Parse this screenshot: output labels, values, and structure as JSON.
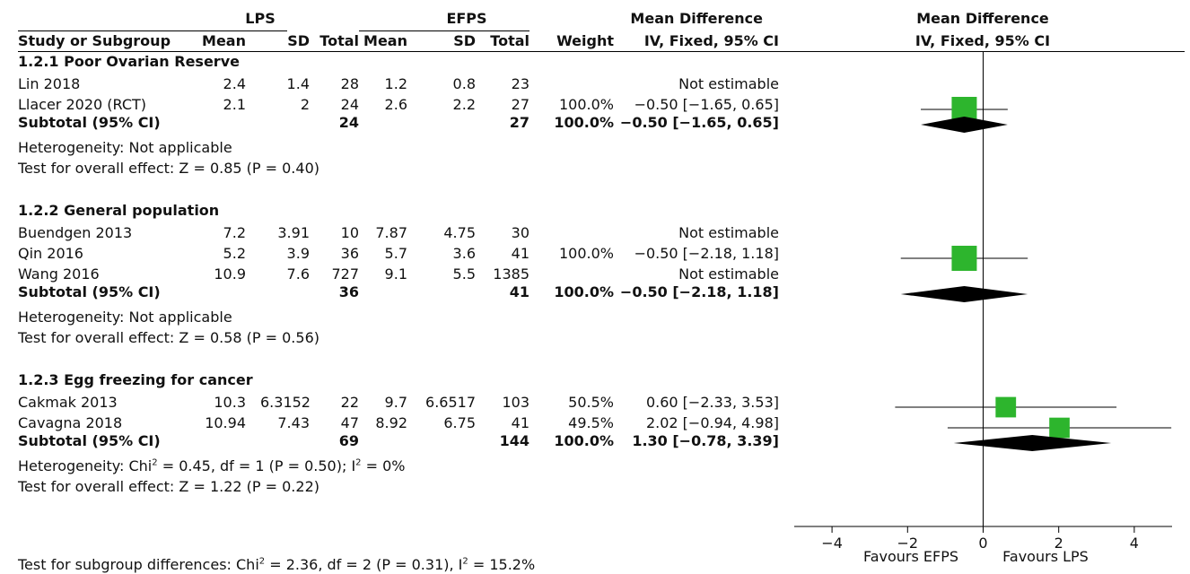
{
  "header": {
    "group1": "LPS",
    "group2": "EFPS",
    "md_title": "Mean Difference",
    "md_sub": "IV, Fixed, 95% CI",
    "plot_title": "Mean Difference",
    "plot_sub": "IV, Fixed, 95% CI",
    "cols": {
      "study": "Study or Subgroup",
      "mean1": "Mean",
      "sd1": "SD",
      "total1": "Total",
      "mean2": "Mean",
      "sd2": "SD",
      "total2": "Total",
      "weight": "Weight"
    }
  },
  "subgroups": [
    {
      "title": "1.2.1 Poor Ovarian Reserve",
      "studies": [
        {
          "name": "Lin 2018",
          "mean1": "2.4",
          "sd1": "1.4",
          "n1": "28",
          "mean2": "1.2",
          "sd2": "0.8",
          "n2": "23",
          "weight": "",
          "ci": "Not estimable"
        },
        {
          "name": "Llacer 2020 (RCT)",
          "mean1": "2.1",
          "sd1": "2",
          "n1": "24",
          "mean2": "2.6",
          "sd2": "2.2",
          "n2": "27",
          "weight": "100.0%",
          "ci": "−0.50 [−1.65, 0.65]"
        }
      ],
      "subtotal": {
        "label": "Subtotal (95% CI)",
        "n1": "24",
        "n2": "27",
        "weight": "100.0%",
        "ci": "−0.50 [−1.65, 0.65]"
      },
      "heterogeneity": "Heterogeneity: Not applicable",
      "overall": "Test for overall effect: Z = 0.85 (P = 0.40)"
    },
    {
      "title": "1.2.2 General population",
      "studies": [
        {
          "name": "Buendgen 2013",
          "mean1": "7.2",
          "sd1": "3.91",
          "n1": "10",
          "mean2": "7.87",
          "sd2": "4.75",
          "n2": "30",
          "weight": "",
          "ci": "Not estimable"
        },
        {
          "name": "Qin 2016",
          "mean1": "5.2",
          "sd1": "3.9",
          "n1": "36",
          "mean2": "5.7",
          "sd2": "3.6",
          "n2": "41",
          "weight": "100.0%",
          "ci": "−0.50 [−2.18, 1.18]"
        },
        {
          "name": "Wang 2016",
          "mean1": "10.9",
          "sd1": "7.6",
          "n1": "727",
          "mean2": "9.1",
          "sd2": "5.5",
          "n2": "1385",
          "weight": "",
          "ci": "Not estimable"
        }
      ],
      "subtotal": {
        "label": "Subtotal (95% CI)",
        "n1": "36",
        "n2": "41",
        "weight": "100.0%",
        "ci": "−0.50 [−2.18, 1.18]"
      },
      "heterogeneity": "Heterogeneity: Not applicable",
      "overall": "Test for overall effect: Z = 0.58 (P = 0.56)"
    },
    {
      "title": "1.2.3 Egg freezing for cancer",
      "studies": [
        {
          "name": "Cakmak 2013",
          "mean1": "10.3",
          "sd1": "6.3152",
          "n1": "22",
          "mean2": "9.7",
          "sd2": "6.6517",
          "n2": "103",
          "weight": "50.5%",
          "ci": "0.60 [−2.33, 3.53]"
        },
        {
          "name": "Cavagna 2018",
          "mean1": "10.94",
          "sd1": "7.43",
          "n1": "47",
          "mean2": "8.92",
          "sd2": "6.75",
          "n2": "41",
          "weight": "49.5%",
          "ci": "2.02 [−0.94, 4.98]"
        }
      ],
      "subtotal": {
        "label": "Subtotal (95% CI)",
        "n1": "69",
        "n2": "144",
        "weight": "100.0%",
        "ci": "1.30 [−0.78, 3.39]"
      },
      "heterogeneity_pre": "Heterogeneity: Chi",
      "heterogeneity_mid": " = 0.45, df = 1 (P = 0.50); I",
      "heterogeneity_post": " = 0%",
      "overall": "Test for overall effect: Z = 1.22 (P = 0.22)"
    }
  ],
  "footer": {
    "subgroup_diff_pre": "Test for subgroup differences: Chi",
    "subgroup_diff_mid": " = 2.36, df = 2 (P = 0.31), I",
    "subgroup_diff_post": " = 15.2%",
    "superscript": "2"
  },
  "axis": {
    "favours_left": "Favours EFPS",
    "favours_right": "Favours LPS"
  },
  "chart_data": {
    "type": "forest",
    "xlim": [
      -5,
      5
    ],
    "ticks": [
      -4,
      -2,
      0,
      2,
      4
    ],
    "tick_labels": [
      "−4",
      "−2",
      "0",
      "2",
      "4"
    ],
    "colors": {
      "study_marker": "#2db52d",
      "diamond": "#000000"
    },
    "rows": [
      {
        "group": "1.2.1 Poor Ovarian Reserve",
        "kind": "study",
        "name": "Llacer 2020 (RCT)",
        "estimate": -0.5,
        "ci": [
          -1.65,
          0.65
        ],
        "weight": 100.0
      },
      {
        "group": "1.2.1 Poor Ovarian Reserve",
        "kind": "subtotal",
        "estimate": -0.5,
        "ci": [
          -1.65,
          0.65
        ]
      },
      {
        "group": "1.2.2 General population",
        "kind": "study",
        "name": "Qin 2016",
        "estimate": -0.5,
        "ci": [
          -2.18,
          1.18
        ],
        "weight": 100.0
      },
      {
        "group": "1.2.2 General population",
        "kind": "subtotal",
        "estimate": -0.5,
        "ci": [
          -2.18,
          1.18
        ]
      },
      {
        "group": "1.2.3 Egg freezing for cancer",
        "kind": "study",
        "name": "Cakmak 2013",
        "estimate": 0.6,
        "ci": [
          -2.33,
          3.53
        ],
        "weight": 50.5
      },
      {
        "group": "1.2.3 Egg freezing for cancer",
        "kind": "study",
        "name": "Cavagna 2018",
        "estimate": 2.02,
        "ci": [
          -0.94,
          4.98
        ],
        "weight": 49.5
      },
      {
        "group": "1.2.3 Egg freezing for cancer",
        "kind": "subtotal",
        "estimate": 1.3,
        "ci": [
          -0.78,
          3.39
        ]
      }
    ]
  }
}
